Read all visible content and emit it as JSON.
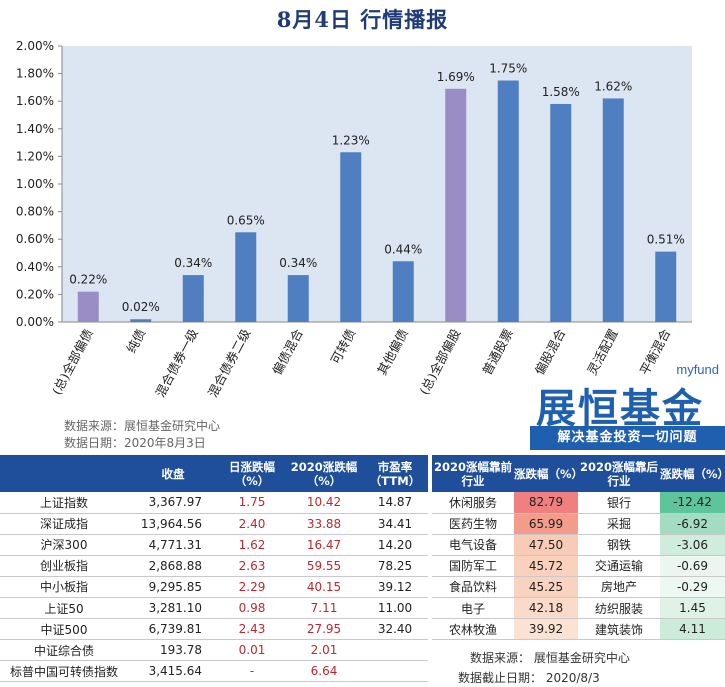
{
  "header": {
    "title": "8月4日  行情播报"
  },
  "chart_data": {
    "type": "bar",
    "categories": [
      "(总)全部偏债",
      "纯债",
      "混合债券一级",
      "混合债券二级",
      "偏债混合",
      "可转债",
      "其他偏债",
      "(总)全部偏股",
      "普通股票",
      "偏股混合",
      "灵活配置",
      "平衡混合"
    ],
    "values": [
      0.22,
      0.02,
      0.34,
      0.65,
      0.34,
      1.23,
      0.44,
      1.69,
      1.75,
      1.58,
      1.62,
      0.51
    ],
    "value_labels": [
      "0.22%",
      "0.02%",
      "0.34%",
      "0.65%",
      "0.34%",
      "1.23%",
      "0.44%",
      "1.69%",
      "1.75%",
      "1.58%",
      "1.62%",
      "0.51%"
    ],
    "highlight": [
      true,
      false,
      false,
      false,
      false,
      false,
      false,
      true,
      false,
      false,
      false,
      false
    ],
    "ylim": [
      0,
      2.0
    ],
    "yticks": [
      "0.00%",
      "0.20%",
      "0.40%",
      "0.60%",
      "0.80%",
      "1.00%",
      "1.20%",
      "1.40%",
      "1.60%",
      "1.80%",
      "2.00%"
    ],
    "colors": {
      "bar": "#4f7fc0",
      "highlight": "#9a8cc4",
      "plot_bg": "#dce6f2"
    },
    "grid": false
  },
  "source": {
    "line1": "数据来源：展恒基金研究中心",
    "line2": "数据日期：2020年8月3日"
  },
  "logo": {
    "top": "myfund",
    "main": "展恒基金",
    "slogan": "解决基金投资一切问题"
  },
  "index_table": {
    "headers": [
      "",
      "收盘",
      "日涨跌幅（%）",
      "2020涨跌幅（%）",
      "市盈率（TTM）"
    ],
    "rows": [
      {
        "name": "上证指数",
        "close": "3,367.97",
        "day": "1.75",
        "ytd": "10.42",
        "pe": "14.87"
      },
      {
        "name": "深证成指",
        "close": "13,964.56",
        "day": "2.40",
        "ytd": "33.88",
        "pe": "34.41"
      },
      {
        "name": "沪深300",
        "close": "4,771.31",
        "day": "1.62",
        "ytd": "16.47",
        "pe": "14.20"
      },
      {
        "name": "创业板指",
        "close": "2,868.88",
        "day": "2.63",
        "ytd": "59.55",
        "pe": "78.25"
      },
      {
        "name": "中小板指",
        "close": "9,295.85",
        "day": "2.29",
        "ytd": "40.15",
        "pe": "39.12"
      },
      {
        "name": "上证50",
        "close": "3,281.10",
        "day": "0.98",
        "ytd": "7.11",
        "pe": "11.00"
      },
      {
        "name": "中证500",
        "close": "6,739.81",
        "day": "2.43",
        "ytd": "27.95",
        "pe": "32.40"
      },
      {
        "name": "中证综合债",
        "close": "193.78",
        "day": "0.01",
        "ytd": "2.01",
        "pe": ""
      },
      {
        "name": "标普中国可转债指数",
        "close": "3,415.64",
        "day": "-",
        "ytd": "6.64",
        "pe": ""
      }
    ]
  },
  "industry_table": {
    "headers": [
      "2020涨幅靠前行业",
      "涨跌幅（%）",
      "2020涨幅靠后行业",
      "涨跌幅（%）"
    ],
    "rows": [
      {
        "top": "休闲服务",
        "top_val": "82.79",
        "top_color": "#f08080",
        "bot": "银行",
        "bot_val": "-12.42",
        "bot_color": "#5ec49a"
      },
      {
        "top": "医药生物",
        "top_val": "65.99",
        "top_color": "#f39c8c",
        "bot": "采掘",
        "bot_val": "-6.92",
        "bot_color": "#a3dcc0"
      },
      {
        "top": "电气设备",
        "top_val": "47.50",
        "top_color": "#f8cbb6",
        "bot": "钢铁",
        "bot_val": "-3.06",
        "bot_color": "#d0ecdd"
      },
      {
        "top": "国防军工",
        "top_val": "45.72",
        "top_color": "#f9d1bd",
        "bot": "交通运输",
        "bot_val": "-0.69",
        "bot_color": "#eaf6ef"
      },
      {
        "top": "食品饮料",
        "top_val": "45.25",
        "top_color": "#f9d3bf",
        "bot": "房地产",
        "bot_val": "-0.29",
        "bot_color": "#eef8f2"
      },
      {
        "top": "电子",
        "top_val": "42.18",
        "top_color": "#fadbc9",
        "bot": "纺织服装",
        "bot_val": "1.45",
        "bot_color": "#dff2e6"
      },
      {
        "top": "农林牧渔",
        "top_val": "39.92",
        "top_color": "#fbe2d3",
        "bot": "建筑装饰",
        "bot_val": "4.11",
        "bot_color": "#cdebd9"
      }
    ],
    "footer1": "数据来源：  展恒基金研究中心",
    "footer2": "数据截止日期：  2020/8/3"
  }
}
